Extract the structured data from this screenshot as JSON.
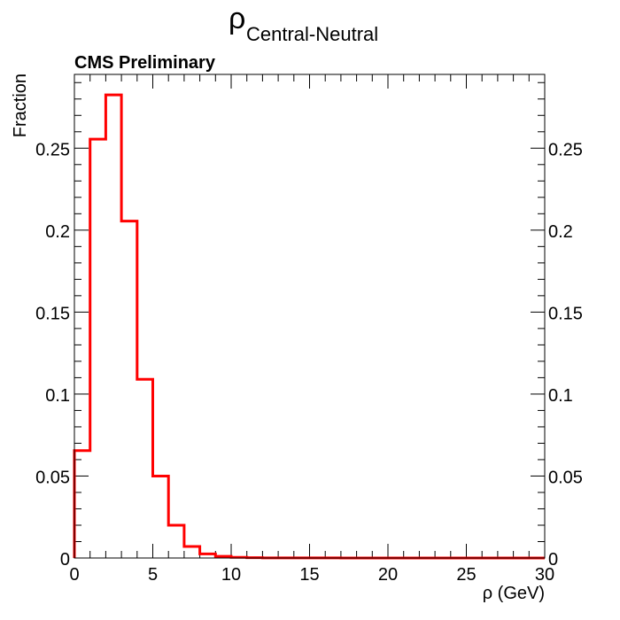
{
  "chart_data": {
    "type": "bar",
    "title": "ρ",
    "title_subscript": "Central-Neutral",
    "annotation": "CMS Preliminary",
    "xlabel": "ρ (GeV)",
    "ylabel": "Fraction",
    "xlim": [
      0,
      30
    ],
    "ylim": [
      0,
      0.295
    ],
    "grid": false,
    "legend": "none",
    "x_ticks": [
      0,
      5,
      10,
      15,
      20,
      25,
      30
    ],
    "x_tick_labels": [
      "0",
      "5",
      "10",
      "15",
      "20",
      "25",
      "30"
    ],
    "y_ticks": [
      0,
      0.05,
      0.1,
      0.15,
      0.2,
      0.25
    ],
    "y_tick_labels": [
      "0",
      "0.05",
      "0.1",
      "0.15",
      "0.2",
      "0.25"
    ],
    "bin_edges": [
      0,
      1,
      2,
      3,
      4,
      5,
      6,
      7,
      8,
      9,
      10,
      11,
      12,
      13,
      14,
      15,
      16,
      17,
      18,
      19,
      20,
      21,
      22,
      23,
      24,
      25,
      26,
      27,
      28,
      29,
      30
    ],
    "series": [
      {
        "color": "#ff0000",
        "values": [
          0.0655,
          0.2555,
          0.2825,
          0.2055,
          0.109,
          0.05,
          0.02,
          0.007,
          0.0025,
          0.001,
          0.0004,
          0.0002,
          0.0001,
          0.0001,
          0.0001,
          5e-05,
          5e-05,
          2e-05,
          2e-05,
          1e-05,
          1e-05,
          1e-05,
          0,
          0,
          0,
          0,
          0,
          0,
          0,
          0
        ]
      }
    ]
  }
}
